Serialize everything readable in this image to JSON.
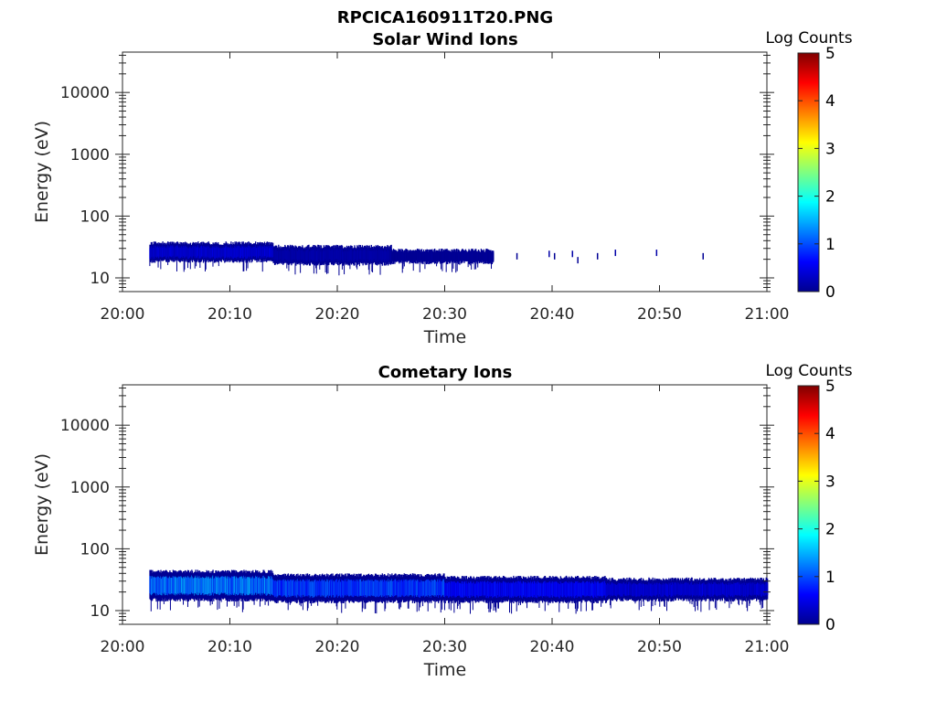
{
  "figure_title": "RPCICA160911T20.PNG",
  "chart_data": [
    {
      "type": "heatmap",
      "title": "Solar Wind Ions",
      "xlabel": "Time",
      "ylabel": "Energy (eV)",
      "x_tick_labels": [
        "20:00",
        "20:10",
        "20:20",
        "20:30",
        "20:40",
        "20:50",
        "21:00"
      ],
      "x_range": [
        "20:00",
        "21:00"
      ],
      "y_scale": "log",
      "y_ticks": [
        10,
        100,
        1000,
        10000
      ],
      "y_tick_labels": [
        "10",
        "100",
        "1000",
        "10000"
      ],
      "y_range": [
        6,
        45000
      ],
      "colorbar": {
        "label": "Log Counts",
        "ticks": [
          "0",
          "1",
          "2",
          "3",
          "4",
          "5"
        ],
        "range": [
          0,
          5
        ],
        "colormap": "jet"
      },
      "bands": [
        {
          "t_start": "20:02:30",
          "t_end": "20:14:00",
          "e_low": 20,
          "e_high": 34,
          "level": 0.4
        },
        {
          "t_start": "20:14:00",
          "t_end": "20:25:00",
          "e_low": 18,
          "e_high": 30,
          "level": 0.2
        },
        {
          "t_start": "20:25:00",
          "t_end": "20:34:30",
          "e_low": 19,
          "e_high": 26,
          "level": 0.1
        }
      ],
      "sporadic": [
        {
          "time": "20:36:40",
          "energy": 22,
          "level": 0.1
        },
        {
          "time": "20:39:40",
          "energy": 24,
          "level": 0.2
        },
        {
          "time": "20:40:10",
          "energy": 22,
          "level": 0.1
        },
        {
          "time": "20:41:50",
          "energy": 24,
          "level": 0.2
        },
        {
          "time": "20:42:20",
          "energy": 19,
          "level": 0.1
        },
        {
          "time": "20:44:10",
          "energy": 22,
          "level": 0.1
        },
        {
          "time": "20:45:50",
          "energy": 25,
          "level": 0.2
        },
        {
          "time": "20:49:40",
          "energy": 25,
          "level": 0.2
        },
        {
          "time": "20:54:00",
          "energy": 22,
          "level": 0.1
        }
      ]
    },
    {
      "type": "heatmap",
      "title": "Cometary Ions",
      "xlabel": "Time",
      "ylabel": "Energy (eV)",
      "x_tick_labels": [
        "20:00",
        "20:10",
        "20:20",
        "20:30",
        "20:40",
        "20:50",
        "21:00"
      ],
      "x_range": [
        "20:00",
        "21:00"
      ],
      "y_scale": "log",
      "y_ticks": [
        10,
        100,
        1000,
        10000
      ],
      "y_tick_labels": [
        "10",
        "100",
        "1000",
        "10000"
      ],
      "y_range": [
        6,
        45000
      ],
      "colorbar": {
        "label": "Log Counts",
        "ticks": [
          "0",
          "1",
          "2",
          "3",
          "4",
          "5"
        ],
        "range": [
          0,
          5
        ],
        "colormap": "jet"
      },
      "bands": [
        {
          "t_start": "20:02:30",
          "t_end": "20:14:00",
          "e_low": 16,
          "e_high": 40,
          "level": 1.2
        },
        {
          "t_start": "20:14:00",
          "t_end": "20:30:00",
          "e_low": 15,
          "e_high": 35,
          "level": 0.9
        },
        {
          "t_start": "20:30:00",
          "t_end": "20:45:00",
          "e_low": 15,
          "e_high": 32,
          "level": 0.6
        },
        {
          "t_start": "20:45:00",
          "t_end": "21:00:00",
          "e_low": 16,
          "e_high": 30,
          "level": 0.4
        }
      ],
      "sporadic": []
    }
  ]
}
